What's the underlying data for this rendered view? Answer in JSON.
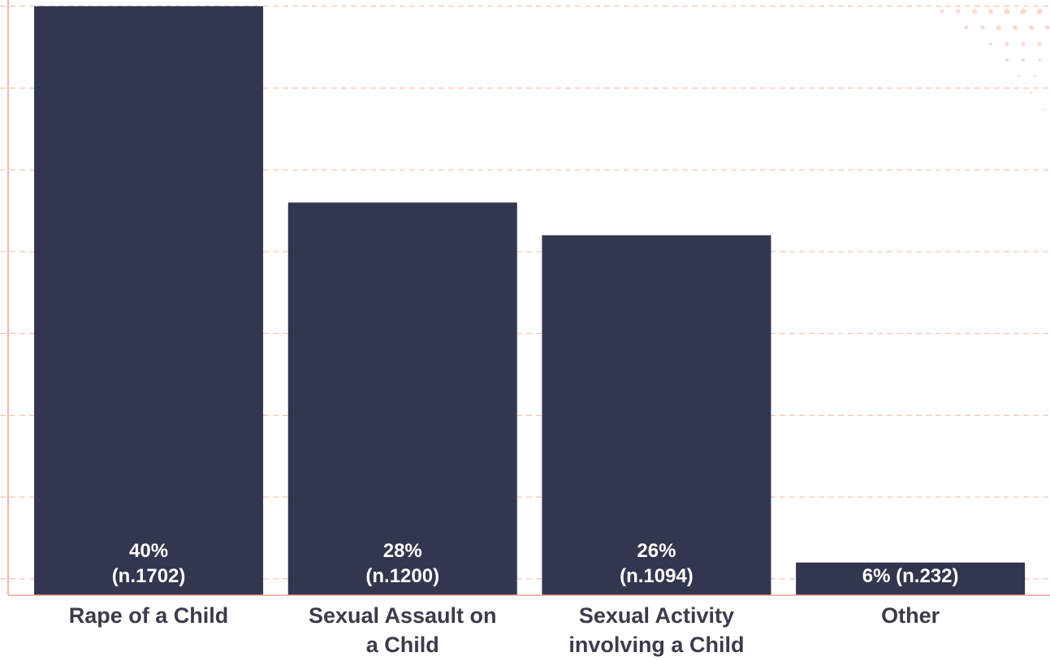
{
  "chart_data": {
    "type": "bar",
    "categories": [
      "Rape of a Child",
      "Sexual Assault on a Child",
      "Sexual Activity involving a Child",
      "Other"
    ],
    "values": [
      40,
      28,
      26,
      6
    ],
    "value_labels": [
      "40% (n.1702)",
      "28% (n.1200)",
      "26% (n.1094)",
      "6% (n.232)"
    ],
    "color": "#32364f",
    "ylim": [
      4,
      40
    ],
    "yticks": [
      5,
      10,
      15,
      20,
      25,
      30,
      35,
      40
    ],
    "show_tick_labels": false,
    "grid": true,
    "grid_color": "#f2b6a4",
    "axis_color": "#eea393"
  }
}
